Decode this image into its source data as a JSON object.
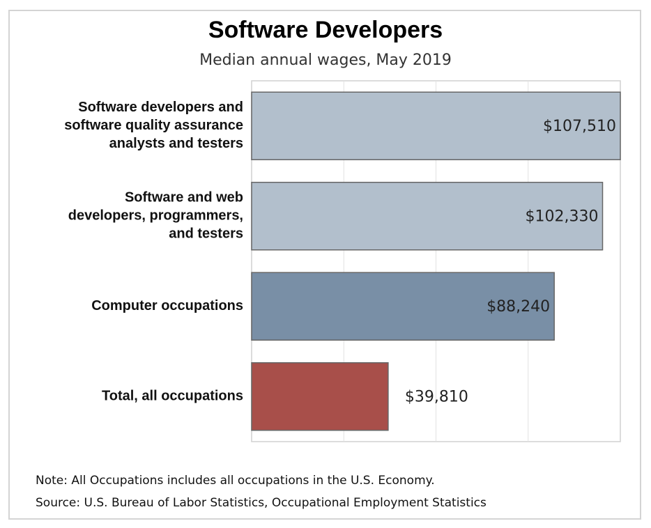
{
  "chart_data": {
    "type": "bar",
    "orientation": "horizontal",
    "title": "Software Developers",
    "subtitle": "Median annual wages, May 2019",
    "categories": [
      [
        "Software developers and",
        "software quality assurance",
        "analysts and testers"
      ],
      [
        "Software and web",
        "developers, programmers,",
        "and testers"
      ],
      [
        "Computer occupations"
      ],
      [
        "Total, all occupations"
      ]
    ],
    "values": [
      107510,
      102330,
      88240,
      39810
    ],
    "value_labels": [
      "$107,510",
      "$102,330",
      "$88,240",
      "$39,810"
    ],
    "colors": [
      "#b2bfcc",
      "#b2bfcc",
      "#798fa6",
      "#a84f4a"
    ],
    "xlim": [
      0,
      107510
    ],
    "grid": true,
    "legend": "none"
  },
  "notes": {
    "note": "Note: All Occupations includes all occupations in the U.S. Economy.",
    "source": "Source: U.S. Bureau of Labor Statistics, Occupational Employment Statistics"
  }
}
